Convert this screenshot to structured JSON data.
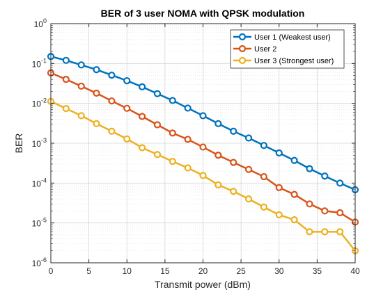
{
  "chart_data": {
    "type": "line",
    "title": "BER of 3 user NOMA with QPSK modulation",
    "xlabel": "Transmit power (dBm)",
    "ylabel": "BER",
    "xlim": [
      0,
      40
    ],
    "ylim": [
      1e-06,
      1
    ],
    "yscale": "log",
    "grid": true,
    "minor_grid": true,
    "legend_position": "top-right",
    "x_ticks": [
      0,
      5,
      10,
      15,
      20,
      25,
      30,
      35,
      40
    ],
    "y_ticks": [
      {
        "value": 1,
        "exp": "0"
      },
      {
        "value": 0.1,
        "exp": "-1"
      },
      {
        "value": 0.01,
        "exp": "-2"
      },
      {
        "value": 0.001,
        "exp": "-3"
      },
      {
        "value": 0.0001,
        "exp": "-4"
      },
      {
        "value": 1e-05,
        "exp": "-5"
      },
      {
        "value": 1e-06,
        "exp": "-6"
      }
    ],
    "y_tick_base": "10",
    "x": [
      0,
      2,
      4,
      6,
      8,
      10,
      12,
      14,
      16,
      18,
      20,
      22,
      24,
      26,
      28,
      30,
      32,
      34,
      36,
      38,
      40
    ],
    "series": [
      {
        "name": "User 1 (Weakest user)",
        "color": "#0072BD",
        "values": [
          0.15,
          0.12,
          0.092,
          0.07,
          0.051,
          0.037,
          0.026,
          0.0175,
          0.0118,
          0.0076,
          0.0049,
          0.0031,
          0.002,
          0.00135,
          0.00088,
          0.00057,
          0.00037,
          0.00023,
          0.00015,
          0.0001,
          6.8e-05
        ]
      },
      {
        "name": "User 2",
        "color": "#D95319",
        "values": [
          0.058,
          0.04,
          0.027,
          0.018,
          0.0115,
          0.0075,
          0.0047,
          0.0029,
          0.0018,
          0.00125,
          0.0008,
          0.0005,
          0.00033,
          0.00022,
          0.000145,
          7.7e-05,
          5.2e-05,
          3e-05,
          2e-05,
          1.8e-05,
          1.05e-05
        ]
      },
      {
        "name": "User 3 (Strongest user)",
        "color": "#EDB120",
        "values": [
          0.0112,
          0.0074,
          0.0049,
          0.0031,
          0.002,
          0.00128,
          0.00077,
          0.00052,
          0.00035,
          0.00024,
          0.000155,
          9e-05,
          6.2e-05,
          4e-05,
          2.5e-05,
          1.6e-05,
          1.2e-05,
          6e-06,
          6e-06,
          6e-06,
          2e-06
        ]
      }
    ]
  }
}
